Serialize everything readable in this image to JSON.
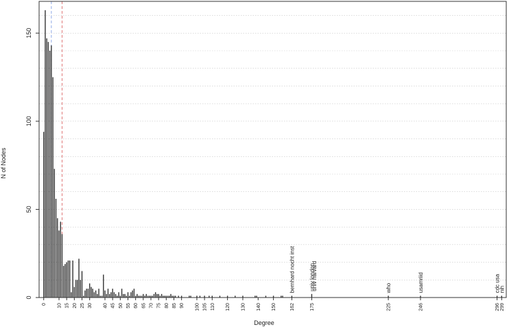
{
  "chart_data": {
    "type": "bar",
    "title": "",
    "xlabel": "Degree",
    "ylabel": "N of Nodes",
    "xlim": [
      -3,
      302
    ],
    "ylim": [
      0,
      168
    ],
    "grid": "horizontal dotted",
    "yticks": [
      0,
      50,
      100,
      150
    ],
    "xticks": [
      "0",
      "10",
      "15",
      "20",
      "25",
      "30",
      "40",
      "45",
      "50",
      "55",
      "60",
      "65",
      "70",
      "75",
      "80",
      "85",
      "90",
      "100",
      "105",
      "110",
      "120",
      "130",
      "140",
      "150",
      "162",
      "175",
      "225",
      "246",
      "296",
      "299"
    ],
    "reference_lines": [
      {
        "x": 5,
        "color": "#8fa8e8",
        "style": "dashed"
      },
      {
        "x": 12,
        "color": "#e07a7a",
        "style": "dashed"
      }
    ],
    "annotations": [
      {
        "x": 162,
        "y": 1,
        "label": "bernhard nocht inst"
      },
      {
        "x": 175,
        "y": 2,
        "label": "univ london"
      },
      {
        "x": 176.5,
        "y": 2,
        "label": "univ harvard"
      },
      {
        "x": 225,
        "y": 1,
        "label": "who"
      },
      {
        "x": 246,
        "y": 1,
        "label": "usamriid"
      },
      {
        "x": 296,
        "y": 1,
        "label": "cdc usa"
      },
      {
        "x": 299,
        "y": 1,
        "label": "nih"
      }
    ],
    "series": [
      {
        "x": [
          0,
          1,
          2,
          3,
          4,
          5,
          6,
          7,
          8,
          9,
          10,
          11,
          12,
          13,
          14,
          15,
          16,
          17,
          18,
          19,
          20,
          21,
          22,
          23,
          24,
          25,
          26,
          27,
          28,
          29,
          30,
          31,
          32,
          33,
          34,
          35,
          36,
          37,
          38,
          39,
          40,
          41,
          42,
          43,
          44,
          45,
          46,
          47,
          48,
          49,
          50,
          51,
          52,
          53,
          54,
          55,
          56,
          57,
          58,
          59,
          60,
          61,
          62,
          63,
          64,
          65,
          66,
          67,
          68,
          69,
          70,
          71,
          72,
          73,
          74,
          75,
          76,
          77,
          78,
          79,
          80,
          81,
          82,
          83,
          84,
          85,
          86,
          88,
          90,
          95,
          96,
          100,
          102,
          105,
          108,
          110,
          115,
          120,
          125,
          130,
          138,
          139,
          145,
          150,
          155,
          156,
          162,
          175,
          225,
          246,
          296,
          299
        ],
        "values": [
          94,
          163,
          147,
          145,
          140,
          143,
          125,
          73,
          56,
          45,
          38,
          43,
          36,
          18,
          19,
          20,
          21,
          21,
          3,
          21,
          6,
          10,
          10,
          22,
          10,
          15,
          1,
          4,
          5,
          5,
          8,
          6,
          5,
          3,
          4,
          2,
          5,
          1,
          1,
          13,
          4,
          2,
          5,
          2,
          3,
          5,
          3,
          2,
          1,
          3,
          1,
          5,
          2,
          2,
          1,
          3,
          1,
          3,
          4,
          5,
          1,
          2,
          1,
          1,
          1,
          2,
          1,
          2,
          1,
          1,
          1,
          1,
          2,
          3,
          2,
          2,
          1,
          2,
          1,
          1,
          1,
          1,
          1,
          2,
          1,
          1,
          1,
          1,
          1,
          1,
          1,
          1,
          1,
          1,
          1,
          1,
          1,
          1,
          1,
          1,
          1,
          1,
          1,
          1,
          1,
          1,
          1,
          2,
          1,
          1,
          1,
          1
        ]
      }
    ]
  }
}
